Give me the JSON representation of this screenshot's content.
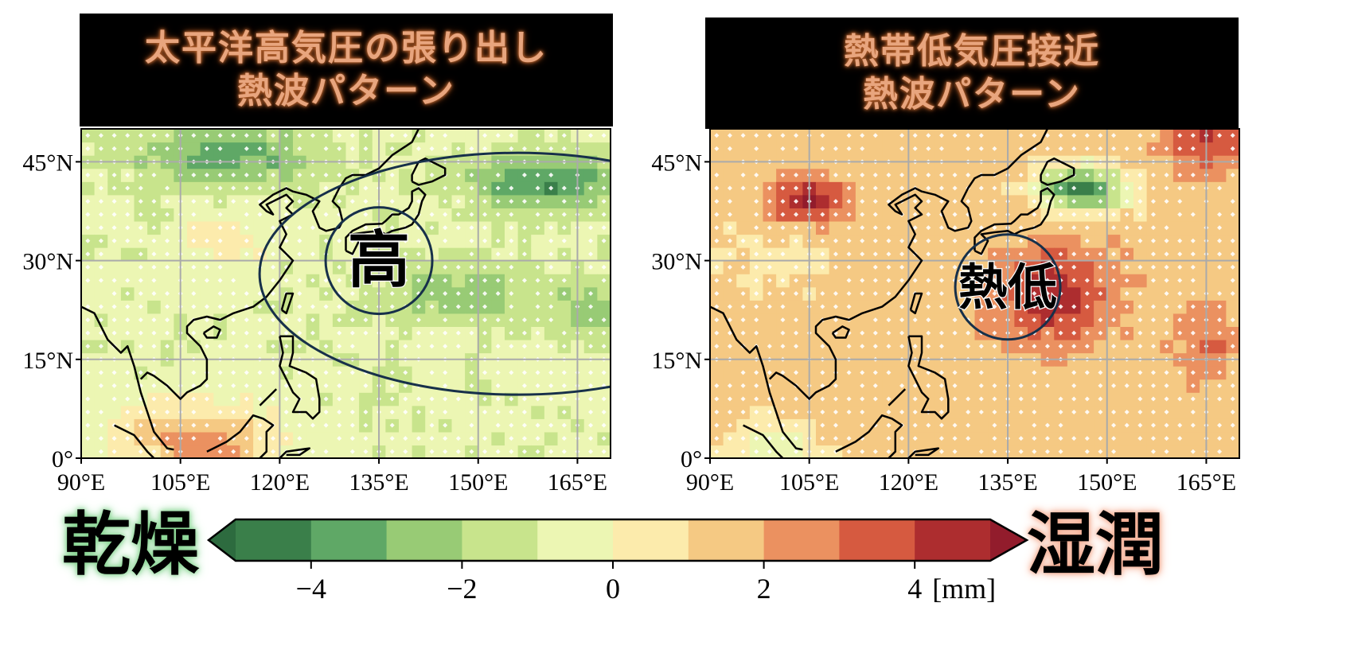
{
  "panels": [
    {
      "id": "left",
      "title_lines": [
        "太平洋高気圧の張り出し",
        "熱波パターン"
      ],
      "center_label": "高",
      "theme": "dry"
    },
    {
      "id": "right",
      "title_lines": [
        "熱帯低気圧接近",
        "熱波パターン"
      ],
      "center_label": "熱低",
      "theme": "wet"
    }
  ],
  "colorbar": {
    "left_label": "乾燥",
    "right_label": "湿潤",
    "unit": "[mm]",
    "ticks": [
      "−4",
      "−2",
      "0",
      "2",
      "4"
    ],
    "colors": [
      "#2d6b3f",
      "#3a7f4a",
      "#5fa866",
      "#98cb75",
      "#c8e48c",
      "#ecf6b3",
      "#fcebac",
      "#f5c983",
      "#eb9160",
      "#d65a40",
      "#ad2d2f",
      "#921c2c"
    ]
  },
  "chart_data": [
    {
      "type": "heatmap",
      "title": "太平洋高気圧の張り出し 熱波パターン",
      "xlabel": "",
      "ylabel": "",
      "x_ticks": [
        "90°E",
        "105°E",
        "120°E",
        "135°E",
        "150°E",
        "165°E"
      ],
      "y_ticks": [
        "0°",
        "15°N",
        "30°N",
        "45°N"
      ],
      "xlim": [
        90,
        170
      ],
      "ylim": [
        0,
        50
      ],
      "grid": true,
      "dominant_anomaly": "dry",
      "annotation": "高"
    },
    {
      "type": "heatmap",
      "title": "熱帯低気圧接近 熱波パターン",
      "xlabel": "",
      "ylabel": "",
      "x_ticks": [
        "90°E",
        "105°E",
        "120°E",
        "135°E",
        "150°E",
        "165°E"
      ],
      "y_ticks": [
        "0°",
        "15°N",
        "30°N",
        "45°N"
      ],
      "xlim": [
        90,
        170
      ],
      "ylim": [
        0,
        50
      ],
      "grid": true,
      "dominant_anomaly": "wet",
      "annotation": "熱低"
    }
  ],
  "colorbar_range": {
    "min": -5,
    "max": 5,
    "step": 1,
    "extend": "both"
  }
}
